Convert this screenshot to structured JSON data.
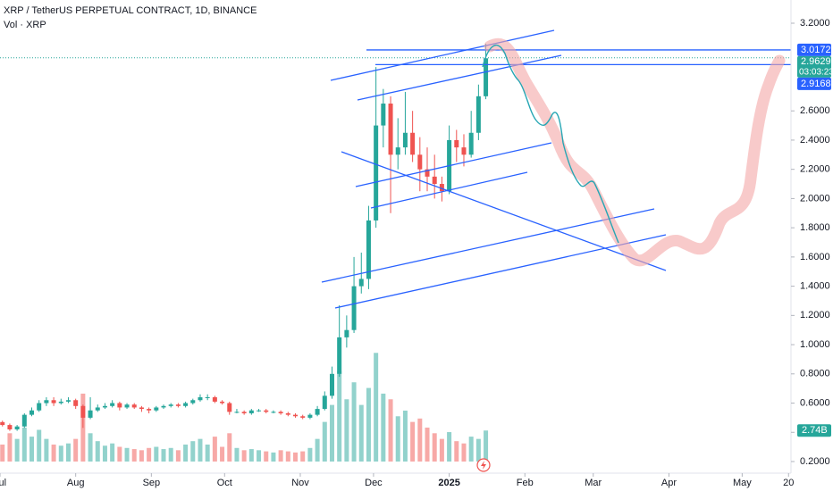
{
  "chart_data": {
    "type": "candlestick",
    "title": "XRP / TetherUS PERPETUAL CONTRACT, 1D, BINANCE",
    "up_color": "#26a69a",
    "down_color": "#ef5350",
    "x": [
      0,
      3,
      6,
      9,
      12,
      15,
      18,
      21,
      24,
      27,
      30,
      33,
      36,
      39,
      42,
      45,
      48,
      51,
      54,
      57,
      60,
      63,
      66,
      69,
      72,
      75,
      78,
      81,
      84,
      87,
      90,
      93,
      96,
      99,
      102,
      105,
      108,
      111,
      114,
      117,
      120,
      123,
      126,
      129,
      132,
      135,
      138,
      141,
      144,
      147,
      150,
      153,
      156,
      159,
      162,
      165,
      168,
      171,
      174,
      177,
      180,
      183,
      186,
      189,
      192,
      195,
      198,
      201
    ],
    "candles": [
      [
        0.48,
        0.49,
        0.45,
        0.47
      ],
      [
        0.47,
        0.48,
        0.44,
        0.45
      ],
      [
        0.45,
        0.46,
        0.41,
        0.42
      ],
      [
        0.42,
        0.45,
        0.41,
        0.44
      ],
      [
        0.44,
        0.53,
        0.43,
        0.52
      ],
      [
        0.52,
        0.57,
        0.51,
        0.55
      ],
      [
        0.55,
        0.62,
        0.54,
        0.6
      ],
      [
        0.6,
        0.64,
        0.58,
        0.62
      ],
      [
        0.62,
        0.64,
        0.58,
        0.6
      ],
      [
        0.6,
        0.63,
        0.59,
        0.61
      ],
      [
        0.61,
        0.64,
        0.6,
        0.62
      ],
      [
        0.62,
        0.63,
        0.56,
        0.58
      ],
      [
        0.58,
        0.59,
        0.43,
        0.5
      ],
      [
        0.5,
        0.64,
        0.49,
        0.55
      ],
      [
        0.55,
        0.59,
        0.54,
        0.57
      ],
      [
        0.57,
        0.6,
        0.56,
        0.58
      ],
      [
        0.58,
        0.62,
        0.57,
        0.6
      ],
      [
        0.6,
        0.61,
        0.55,
        0.57
      ],
      [
        0.57,
        0.6,
        0.56,
        0.59
      ],
      [
        0.59,
        0.6,
        0.56,
        0.57
      ],
      [
        0.57,
        0.58,
        0.54,
        0.56
      ],
      [
        0.56,
        0.57,
        0.53,
        0.55
      ],
      [
        0.55,
        0.58,
        0.54,
        0.57
      ],
      [
        0.57,
        0.59,
        0.56,
        0.58
      ],
      [
        0.58,
        0.6,
        0.57,
        0.59
      ],
      [
        0.59,
        0.6,
        0.57,
        0.58
      ],
      [
        0.58,
        0.61,
        0.57,
        0.6
      ],
      [
        0.6,
        0.63,
        0.59,
        0.62
      ],
      [
        0.62,
        0.66,
        0.61,
        0.64
      ],
      [
        0.64,
        0.66,
        0.62,
        0.64
      ],
      [
        0.64,
        0.65,
        0.6,
        0.61
      ],
      [
        0.61,
        0.62,
        0.59,
        0.6
      ],
      [
        0.6,
        0.61,
        0.52,
        0.54
      ],
      [
        0.54,
        0.56,
        0.53,
        0.54
      ],
      [
        0.54,
        0.55,
        0.52,
        0.53
      ],
      [
        0.53,
        0.56,
        0.52,
        0.55
      ],
      [
        0.55,
        0.56,
        0.54,
        0.55
      ],
      [
        0.55,
        0.56,
        0.53,
        0.54
      ],
      [
        0.54,
        0.55,
        0.53,
        0.54
      ],
      [
        0.54,
        0.55,
        0.52,
        0.53
      ],
      [
        0.53,
        0.54,
        0.51,
        0.52
      ],
      [
        0.52,
        0.53,
        0.5,
        0.51
      ],
      [
        0.51,
        0.52,
        0.49,
        0.5
      ],
      [
        0.5,
        0.53,
        0.49,
        0.52
      ],
      [
        0.52,
        0.58,
        0.51,
        0.56
      ],
      [
        0.56,
        0.68,
        0.55,
        0.65
      ],
      [
        0.65,
        0.85,
        0.63,
        0.8
      ],
      [
        0.8,
        1.27,
        0.78,
        1.05
      ],
      [
        1.05,
        1.2,
        0.98,
        1.1
      ],
      [
        1.1,
        1.6,
        1.08,
        1.4
      ],
      [
        1.4,
        1.63,
        1.35,
        1.45
      ],
      [
        1.45,
        1.95,
        1.38,
        1.85
      ],
      [
        1.85,
        2.9,
        1.8,
        2.5
      ],
      [
        2.5,
        2.75,
        2.35,
        2.65
      ],
      [
        2.65,
        2.7,
        1.9,
        2.3
      ],
      [
        2.3,
        2.55,
        2.2,
        2.35
      ],
      [
        2.35,
        2.73,
        2.3,
        2.45
      ],
      [
        2.45,
        2.6,
        2.25,
        2.3
      ],
      [
        2.3,
        2.42,
        2.05,
        2.2
      ],
      [
        2.2,
        2.35,
        2.05,
        2.15
      ],
      [
        2.15,
        2.3,
        2.0,
        2.1
      ],
      [
        2.1,
        2.15,
        1.98,
        2.05
      ],
      [
        2.05,
        2.5,
        2.03,
        2.4
      ],
      [
        2.4,
        2.47,
        2.25,
        2.35
      ],
      [
        2.35,
        2.44,
        2.22,
        2.3
      ],
      [
        2.3,
        2.6,
        2.28,
        2.45
      ],
      [
        2.45,
        2.78,
        2.4,
        2.7
      ],
      [
        2.7,
        3.06,
        2.68,
        2.96
      ]
    ],
    "volume": {
      "name": "Vol · XRP",
      "values": [
        1.2,
        1.5,
        2.5,
        2.0,
        3.0,
        2.2,
        2.8,
        2.0,
        1.5,
        1.4,
        1.6,
        2.0,
        6.0,
        2.5,
        1.8,
        1.4,
        1.6,
        1.3,
        1.2,
        1.1,
        1.0,
        1.2,
        1.3,
        1.1,
        1.2,
        1.0,
        1.5,
        1.8,
        2.0,
        1.5,
        2.2,
        1.3,
        2.5,
        1.2,
        1.0,
        1.1,
        1.0,
        0.9,
        0.8,
        1.0,
        0.9,
        0.8,
        0.9,
        1.2,
        2.0,
        3.5,
        5.0,
        8.0,
        5.5,
        7.0,
        5.0,
        6.5,
        9.6,
        6.0,
        5.5,
        4.0,
        4.5,
        3.5,
        3.8,
        3.0,
        2.5,
        2.0,
        2.6,
        1.8,
        1.6,
        2.2,
        2.0,
        2.74
      ],
      "value_labels": [
        null,
        null,
        null,
        null,
        null,
        null,
        null,
        null,
        null,
        null,
        null,
        null,
        null,
        null,
        null,
        null,
        null,
        null,
        null,
        null,
        null,
        null,
        null,
        null,
        null,
        null,
        null,
        null,
        null,
        null,
        null,
        null,
        null,
        null,
        null,
        null,
        null,
        null,
        null,
        null,
        null,
        null,
        null,
        null,
        null,
        null,
        null,
        null,
        null,
        null,
        null,
        null,
        null,
        null,
        null,
        null,
        null,
        null,
        null,
        null,
        null,
        null,
        null,
        null,
        null,
        null,
        null,
        "2.74B"
      ]
    },
    "y2lim": [
      0,
      25
    ],
    "xlim": [
      2,
      326
    ],
    "xticks": [
      {
        "value": 2,
        "label": "Jul"
      },
      {
        "value": 33,
        "label": "Aug"
      },
      {
        "value": 64,
        "label": "Sep"
      },
      {
        "value": 94,
        "label": "Oct"
      },
      {
        "value": 125,
        "label": "Nov"
      },
      {
        "value": 155,
        "label": "Dec"
      },
      {
        "value": 186,
        "label": "2025"
      },
      {
        "value": 217,
        "label": "Feb"
      },
      {
        "value": 245,
        "label": "Mar"
      },
      {
        "value": 276,
        "label": "Apr"
      },
      {
        "value": 306,
        "label": "May"
      },
      {
        "value": 325,
        "label": "20"
      }
    ],
    "ylim": [
      0.2,
      3.2
    ],
    "yticks": [
      {
        "value": 0.2,
        "label": "0.2000"
      },
      {
        "value": 0.4,
        "label": "0.4000"
      },
      {
        "value": 0.6,
        "label": "0.6000"
      },
      {
        "value": 0.8,
        "label": "0.8000"
      },
      {
        "value": 1.0,
        "label": "1.0000"
      },
      {
        "value": 1.2,
        "label": "1.2000"
      },
      {
        "value": 1.4,
        "label": "1.4000"
      },
      {
        "value": 1.6,
        "label": "1.6000"
      },
      {
        "value": 1.8,
        "label": "1.8000"
      },
      {
        "value": 2.0,
        "label": "2.0000"
      },
      {
        "value": 2.2,
        "label": "2.2000"
      },
      {
        "value": 2.4,
        "label": "2.4000"
      },
      {
        "value": 2.6,
        "label": "2.6000"
      },
      {
        "value": 3.2,
        "label": "3.2000"
      }
    ],
    "levels": [
      {
        "value": 3.0172,
        "label": "3.0172"
      },
      {
        "value": 2.9168,
        "label": "2.9168"
      }
    ],
    "level_color": "#2962ff",
    "last_price": {
      "value": 2.9629,
      "label": "2.9629"
    },
    "countdown": "03:03:23",
    "last_price_color": "#26a69a"
  }
}
